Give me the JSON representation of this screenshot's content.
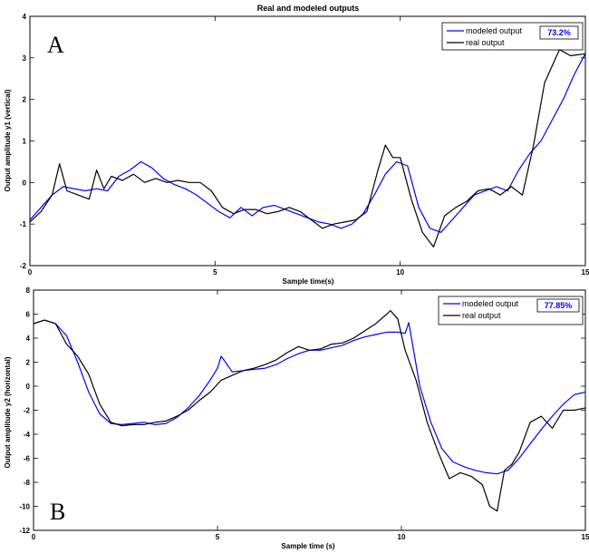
{
  "chart_data": [
    {
      "type": "line",
      "panel_letter": "A",
      "title": "Real and modeled outputs",
      "xlabel": "Sample time(s)",
      "ylabel": "Output amplitude y1 (vertical)",
      "xlim": [
        0,
        15
      ],
      "ylim": [
        -2,
        4
      ],
      "xticks": [
        "0",
        "5",
        "10",
        "15"
      ],
      "yticks": [
        "-2",
        "-1",
        "0",
        "1",
        "2",
        "3",
        "4"
      ],
      "grid": false,
      "legend_position": "top-right",
      "fit_label": "73.2%",
      "fit_color": "#0000ff",
      "series": [
        {
          "name": "modeled output",
          "color": "#0000ff",
          "x": [
            0,
            0.3,
            0.6,
            0.9,
            1.2,
            1.5,
            1.8,
            2.1,
            2.4,
            2.7,
            3.0,
            3.3,
            3.6,
            3.9,
            4.2,
            4.5,
            4.8,
            5.1,
            5.4,
            5.7,
            6.0,
            6.3,
            6.6,
            6.9,
            7.2,
            7.5,
            7.8,
            8.1,
            8.4,
            8.7,
            9.0,
            9.3,
            9.6,
            9.9,
            10.2,
            10.5,
            10.8,
            11.1,
            11.4,
            11.7,
            12.0,
            12.3,
            12.6,
            12.9,
            13.2,
            13.5,
            13.8,
            14.1,
            14.4,
            14.7,
            15.0
          ],
          "y": [
            -0.9,
            -0.6,
            -0.3,
            -0.1,
            -0.15,
            -0.2,
            -0.15,
            -0.2,
            0.15,
            0.3,
            0.5,
            0.35,
            0.1,
            -0.05,
            -0.15,
            -0.3,
            -0.5,
            -0.7,
            -0.85,
            -0.6,
            -0.8,
            -0.6,
            -0.55,
            -0.65,
            -0.75,
            -0.85,
            -0.95,
            -1.0,
            -1.1,
            -1.0,
            -0.75,
            -0.3,
            0.2,
            0.5,
            0.4,
            -0.6,
            -1.1,
            -1.2,
            -0.9,
            -0.6,
            -0.3,
            -0.2,
            -0.1,
            -0.2,
            0.3,
            0.7,
            1.0,
            1.5,
            2.0,
            2.6,
            3.1
          ]
        },
        {
          "name": "real output",
          "color": "#000000",
          "x": [
            0,
            0.3,
            0.6,
            0.8,
            1.0,
            1.3,
            1.6,
            1.8,
            2.0,
            2.2,
            2.5,
            2.8,
            3.1,
            3.4,
            3.7,
            4.0,
            4.3,
            4.6,
            4.9,
            5.2,
            5.5,
            5.8,
            6.1,
            6.4,
            6.7,
            7.0,
            7.3,
            7.6,
            7.9,
            8.2,
            8.5,
            8.8,
            9.1,
            9.4,
            9.6,
            9.8,
            10.0,
            10.3,
            10.6,
            10.9,
            11.2,
            11.5,
            11.8,
            12.1,
            12.4,
            12.7,
            13.0,
            13.3,
            13.6,
            13.9,
            14.1,
            14.3,
            14.6,
            15.0
          ],
          "y": [
            -0.95,
            -0.7,
            -0.3,
            0.45,
            -0.2,
            -0.3,
            -0.4,
            0.3,
            -0.15,
            0.15,
            0.05,
            0.2,
            0.0,
            0.1,
            0.0,
            0.05,
            0.0,
            0.0,
            -0.2,
            -0.6,
            -0.75,
            -0.65,
            -0.65,
            -0.75,
            -0.7,
            -0.6,
            -0.7,
            -0.9,
            -1.1,
            -1.0,
            -0.95,
            -0.9,
            -0.7,
            0.3,
            0.9,
            0.6,
            0.6,
            -0.4,
            -1.2,
            -1.55,
            -0.8,
            -0.6,
            -0.45,
            -0.2,
            -0.15,
            -0.3,
            -0.1,
            -0.3,
            0.9,
            2.4,
            2.8,
            3.2,
            3.05,
            3.1
          ]
        }
      ]
    },
    {
      "type": "line",
      "panel_letter": "B",
      "title": "",
      "xlabel": "Sample time (s)",
      "ylabel": "Output amplitude y2 (horizontal)",
      "xlim": [
        0,
        15
      ],
      "ylim": [
        -12,
        8
      ],
      "xticks": [
        "0",
        "5",
        "10",
        "15"
      ],
      "yticks": [
        "-12",
        "-10",
        "-8",
        "-6",
        "-4",
        "-2",
        "0",
        "2",
        "4",
        "6",
        "8"
      ],
      "grid": false,
      "legend_position": "top-right",
      "fit_label": "77.85%",
      "fit_color": "#0000ff",
      "series": [
        {
          "name": "modeled output",
          "color": "#0000ff",
          "x": [
            0,
            0.3,
            0.6,
            0.9,
            1.2,
            1.5,
            1.8,
            2.1,
            2.4,
            2.7,
            3.0,
            3.3,
            3.6,
            3.9,
            4.2,
            4.5,
            4.8,
            5.0,
            5.1,
            5.4,
            5.7,
            6.0,
            6.3,
            6.6,
            6.9,
            7.2,
            7.5,
            7.8,
            8.1,
            8.4,
            8.7,
            9.0,
            9.3,
            9.6,
            9.9,
            10.1,
            10.2,
            10.5,
            10.8,
            11.1,
            11.4,
            11.7,
            12.0,
            12.3,
            12.6,
            12.9,
            13.2,
            13.5,
            13.8,
            14.1,
            14.4,
            14.7,
            15.0
          ],
          "y": [
            5.2,
            5.5,
            5.2,
            4.2,
            2.0,
            -0.5,
            -2.3,
            -3.1,
            -3.2,
            -3.1,
            -3.0,
            -3.2,
            -3.1,
            -2.6,
            -1.8,
            -0.8,
            0.5,
            1.5,
            2.5,
            1.2,
            1.3,
            1.4,
            1.5,
            1.8,
            2.3,
            2.7,
            3.0,
            3.0,
            3.2,
            3.4,
            3.8,
            4.1,
            4.3,
            4.5,
            4.5,
            4.4,
            5.3,
            0.0,
            -3.0,
            -5.2,
            -6.3,
            -6.7,
            -7.0,
            -7.2,
            -7.3,
            -7.0,
            -6.0,
            -4.8,
            -3.6,
            -2.5,
            -1.5,
            -0.7,
            -0.5
          ]
        },
        {
          "name": "real output",
          "color": "#000000",
          "x": [
            0,
            0.3,
            0.6,
            0.9,
            1.2,
            1.5,
            1.8,
            2.1,
            2.4,
            2.7,
            3.0,
            3.3,
            3.6,
            3.9,
            4.2,
            4.5,
            4.8,
            5.1,
            5.4,
            5.7,
            6.0,
            6.3,
            6.6,
            6.9,
            7.2,
            7.5,
            7.8,
            8.1,
            8.4,
            8.7,
            9.0,
            9.3,
            9.6,
            9.7,
            9.9,
            10.1,
            10.4,
            10.7,
            11.0,
            11.3,
            11.6,
            11.9,
            12.2,
            12.4,
            12.6,
            12.8,
            13.0,
            13.2,
            13.5,
            13.8,
            14.1,
            14.4,
            14.7,
            15.0
          ],
          "y": [
            5.2,
            5.5,
            5.2,
            3.5,
            2.5,
            1.0,
            -1.5,
            -3.0,
            -3.3,
            -3.2,
            -3.2,
            -3.0,
            -2.9,
            -2.5,
            -2.0,
            -1.2,
            -0.5,
            0.5,
            0.9,
            1.3,
            1.5,
            1.8,
            2.2,
            2.8,
            3.3,
            3.0,
            3.1,
            3.5,
            3.6,
            4.0,
            4.6,
            5.2,
            6.0,
            6.3,
            5.6,
            3.0,
            0.5,
            -3.0,
            -5.5,
            -7.7,
            -7.2,
            -7.5,
            -8.2,
            -10.0,
            -10.4,
            -7.0,
            -6.5,
            -5.5,
            -3.0,
            -2.5,
            -3.5,
            -2.0,
            -2.0,
            -1.8
          ]
        }
      ]
    }
  ]
}
